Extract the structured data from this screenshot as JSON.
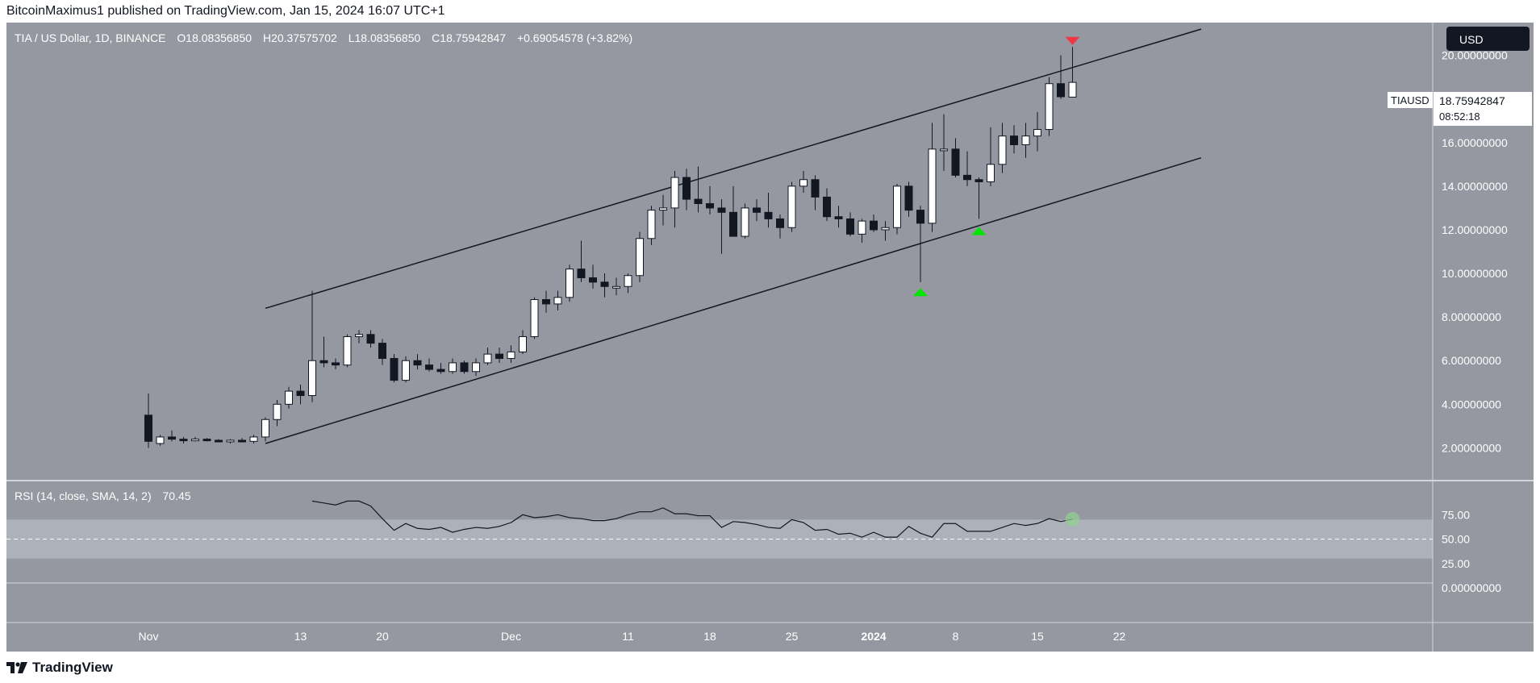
{
  "header": {
    "publisher_line": "BitcoinMaximus1 published on TradingView.com, Jan 15, 2024 16:07 UTC+1"
  },
  "footer": {
    "brand": "TradingView"
  },
  "legend": {
    "symbol": "TIA / US Dollar, 1D, BINANCE",
    "o_label": "O",
    "o_value": "18.08356850",
    "h_label": "H",
    "h_value": "20.37575702",
    "l_label": "L",
    "l_value": "18.08356850",
    "c_label": "C",
    "c_value": "18.75942847",
    "change": "+0.69054578 (+3.82%)"
  },
  "currency_badge": "USD",
  "price_tag": {
    "symbol": "TIAUSD",
    "price": "18.75942847",
    "countdown": "08:52:18"
  },
  "rsi_legend": {
    "label": "RSI (14, close, SMA, 14, 2)",
    "value": "70.45"
  },
  "colors": {
    "background": "#9598a1",
    "up_candle": "#ffffff",
    "down_candle": "#131722",
    "wick": "#131722",
    "channel": "#131722",
    "rsi_band": "#b2b5be",
    "marker_top": "#f23645",
    "marker_bottom": "#00e600"
  },
  "chart_data": [
    {
      "type": "candlestick",
      "yscale": "linear",
      "ylim": [
        0.5,
        21.5
      ],
      "y_ticks": [
        "20.00000000",
        "18.00000000",
        "16.00000000",
        "14.00000000",
        "12.00000000",
        "10.00000000",
        "8.00000000",
        "6.00000000",
        "4.00000000",
        "2.00000000"
      ],
      "x_ticks": [
        {
          "label": "Nov",
          "date": "2023-10-31"
        },
        {
          "label": "13",
          "date": "2023-11-13"
        },
        {
          "label": "20",
          "date": "2023-11-20"
        },
        {
          "label": "Dec",
          "date": "2023-12-01"
        },
        {
          "label": "11",
          "date": "2023-12-11"
        },
        {
          "label": "18",
          "date": "2023-12-18"
        },
        {
          "label": "25",
          "date": "2023-12-25"
        },
        {
          "label": "2024",
          "date": "2024-01-01"
        },
        {
          "label": "8",
          "date": "2024-01-08"
        },
        {
          "label": "15",
          "date": "2024-01-15"
        },
        {
          "label": "22",
          "date": "2024-01-22"
        }
      ],
      "candles": [
        {
          "date": "2023-10-31",
          "o": 3.5,
          "h": 4.5,
          "l": 2.0,
          "c": 2.3
        },
        {
          "date": "2023-11-01",
          "o": 2.2,
          "h": 2.6,
          "l": 2.1,
          "c": 2.5
        },
        {
          "date": "2023-11-02",
          "o": 2.5,
          "h": 2.8,
          "l": 2.3,
          "c": 2.4
        },
        {
          "date": "2023-11-03",
          "o": 2.4,
          "h": 2.5,
          "l": 2.2,
          "c": 2.35
        },
        {
          "date": "2023-11-04",
          "o": 2.35,
          "h": 2.5,
          "l": 2.3,
          "c": 2.4
        },
        {
          "date": "2023-11-05",
          "o": 2.4,
          "h": 2.45,
          "l": 2.3,
          "c": 2.35
        },
        {
          "date": "2023-11-06",
          "o": 2.35,
          "h": 2.4,
          "l": 2.25,
          "c": 2.3
        },
        {
          "date": "2023-11-07",
          "o": 2.3,
          "h": 2.4,
          "l": 2.2,
          "c": 2.35
        },
        {
          "date": "2023-11-08",
          "o": 2.35,
          "h": 2.45,
          "l": 2.25,
          "c": 2.3
        },
        {
          "date": "2023-11-09",
          "o": 2.3,
          "h": 2.6,
          "l": 2.2,
          "c": 2.5
        },
        {
          "date": "2023-11-10",
          "o": 2.5,
          "h": 3.4,
          "l": 2.3,
          "c": 3.3
        },
        {
          "date": "2023-11-11",
          "o": 3.3,
          "h": 4.2,
          "l": 3.0,
          "c": 4.0
        },
        {
          "date": "2023-11-12",
          "o": 4.0,
          "h": 4.8,
          "l": 3.8,
          "c": 4.6
        },
        {
          "date": "2023-11-13",
          "o": 4.6,
          "h": 4.9,
          "l": 4.0,
          "c": 4.4
        },
        {
          "date": "2023-11-14",
          "o": 4.4,
          "h": 9.2,
          "l": 4.1,
          "c": 6.0
        },
        {
          "date": "2023-11-15",
          "o": 6.0,
          "h": 7.1,
          "l": 5.7,
          "c": 5.9
        },
        {
          "date": "2023-11-16",
          "o": 5.9,
          "h": 6.1,
          "l": 5.6,
          "c": 5.8
        },
        {
          "date": "2023-11-17",
          "o": 5.8,
          "h": 7.2,
          "l": 5.7,
          "c": 7.1
        },
        {
          "date": "2023-11-18",
          "o": 7.1,
          "h": 7.4,
          "l": 6.8,
          "c": 7.2
        },
        {
          "date": "2023-11-19",
          "o": 7.2,
          "h": 7.4,
          "l": 6.6,
          "c": 6.8
        },
        {
          "date": "2023-11-20",
          "o": 6.8,
          "h": 7.0,
          "l": 5.8,
          "c": 6.1
        },
        {
          "date": "2023-11-21",
          "o": 6.1,
          "h": 6.3,
          "l": 5.0,
          "c": 5.1
        },
        {
          "date": "2023-11-22",
          "o": 5.1,
          "h": 6.2,
          "l": 5.0,
          "c": 6.0
        },
        {
          "date": "2023-11-23",
          "o": 6.0,
          "h": 6.3,
          "l": 5.6,
          "c": 5.8
        },
        {
          "date": "2023-11-24",
          "o": 5.8,
          "h": 6.1,
          "l": 5.5,
          "c": 5.6
        },
        {
          "date": "2023-11-25",
          "o": 5.6,
          "h": 5.9,
          "l": 5.4,
          "c": 5.5
        },
        {
          "date": "2023-11-26",
          "o": 5.5,
          "h": 6.1,
          "l": 5.4,
          "c": 5.9
        },
        {
          "date": "2023-11-27",
          "o": 5.9,
          "h": 6.0,
          "l": 5.4,
          "c": 5.5
        },
        {
          "date": "2023-11-28",
          "o": 5.5,
          "h": 6.1,
          "l": 5.3,
          "c": 5.9
        },
        {
          "date": "2023-11-29",
          "o": 5.9,
          "h": 6.6,
          "l": 5.8,
          "c": 6.3
        },
        {
          "date": "2023-11-30",
          "o": 6.3,
          "h": 6.6,
          "l": 5.9,
          "c": 6.1
        },
        {
          "date": "2023-12-01",
          "o": 6.1,
          "h": 6.7,
          "l": 5.9,
          "c": 6.4
        },
        {
          "date": "2023-12-02",
          "o": 6.4,
          "h": 7.4,
          "l": 6.3,
          "c": 7.1
        },
        {
          "date": "2023-12-03",
          "o": 7.1,
          "h": 8.9,
          "l": 7.0,
          "c": 8.8
        },
        {
          "date": "2023-12-04",
          "o": 8.8,
          "h": 9.2,
          "l": 8.2,
          "c": 8.6
        },
        {
          "date": "2023-12-05",
          "o": 8.6,
          "h": 9.2,
          "l": 8.3,
          "c": 8.9
        },
        {
          "date": "2023-12-06",
          "o": 8.9,
          "h": 10.4,
          "l": 8.7,
          "c": 10.2
        },
        {
          "date": "2023-12-07",
          "o": 10.2,
          "h": 11.5,
          "l": 9.6,
          "c": 9.8
        },
        {
          "date": "2023-12-08",
          "o": 9.8,
          "h": 10.4,
          "l": 9.3,
          "c": 9.6
        },
        {
          "date": "2023-12-09",
          "o": 9.6,
          "h": 10.0,
          "l": 8.9,
          "c": 9.4
        },
        {
          "date": "2023-12-10",
          "o": 9.4,
          "h": 9.8,
          "l": 9.0,
          "c": 9.4
        },
        {
          "date": "2023-12-11",
          "o": 9.4,
          "h": 10.0,
          "l": 9.1,
          "c": 9.9
        },
        {
          "date": "2023-12-12",
          "o": 9.9,
          "h": 11.9,
          "l": 9.6,
          "c": 11.6
        },
        {
          "date": "2023-12-13",
          "o": 11.6,
          "h": 13.1,
          "l": 11.3,
          "c": 12.9
        },
        {
          "date": "2023-12-14",
          "o": 12.9,
          "h": 13.6,
          "l": 12.2,
          "c": 13.0
        },
        {
          "date": "2023-12-15",
          "o": 13.0,
          "h": 14.7,
          "l": 12.1,
          "c": 14.4
        },
        {
          "date": "2023-12-16",
          "o": 14.4,
          "h": 14.8,
          "l": 12.9,
          "c": 13.4
        },
        {
          "date": "2023-12-17",
          "o": 13.4,
          "h": 14.9,
          "l": 12.8,
          "c": 13.2
        },
        {
          "date": "2023-12-18",
          "o": 13.2,
          "h": 14.0,
          "l": 12.7,
          "c": 13.0
        },
        {
          "date": "2023-12-19",
          "o": 13.0,
          "h": 13.4,
          "l": 10.9,
          "c": 12.8
        },
        {
          "date": "2023-12-20",
          "o": 12.8,
          "h": 14.0,
          "l": 11.7,
          "c": 11.7
        },
        {
          "date": "2023-12-21",
          "o": 11.7,
          "h": 13.2,
          "l": 11.6,
          "c": 13.0
        },
        {
          "date": "2023-12-22",
          "o": 13.0,
          "h": 13.4,
          "l": 12.4,
          "c": 12.8
        },
        {
          "date": "2023-12-23",
          "o": 12.8,
          "h": 13.7,
          "l": 12.1,
          "c": 12.5
        },
        {
          "date": "2023-12-24",
          "o": 12.5,
          "h": 12.7,
          "l": 11.6,
          "c": 12.1
        },
        {
          "date": "2023-12-25",
          "o": 12.1,
          "h": 14.2,
          "l": 11.9,
          "c": 14.0
        },
        {
          "date": "2023-12-26",
          "o": 14.0,
          "h": 14.7,
          "l": 13.7,
          "c": 14.3
        },
        {
          "date": "2023-12-27",
          "o": 14.3,
          "h": 14.5,
          "l": 12.9,
          "c": 13.5
        },
        {
          "date": "2023-12-28",
          "o": 13.5,
          "h": 13.9,
          "l": 12.4,
          "c": 12.6
        },
        {
          "date": "2023-12-29",
          "o": 12.6,
          "h": 13.1,
          "l": 12.1,
          "c": 12.5
        },
        {
          "date": "2023-12-30",
          "o": 12.5,
          "h": 12.8,
          "l": 11.7,
          "c": 11.8
        },
        {
          "date": "2023-12-31",
          "o": 11.8,
          "h": 12.5,
          "l": 11.4,
          "c": 12.4
        },
        {
          "date": "2024-01-01",
          "o": 12.4,
          "h": 12.7,
          "l": 11.9,
          "c": 12.0
        },
        {
          "date": "2024-01-02",
          "o": 12.0,
          "h": 12.4,
          "l": 11.5,
          "c": 12.1
        },
        {
          "date": "2024-01-03",
          "o": 12.1,
          "h": 14.1,
          "l": 11.8,
          "c": 14.0
        },
        {
          "date": "2024-01-04",
          "o": 14.0,
          "h": 14.2,
          "l": 12.6,
          "c": 12.9
        },
        {
          "date": "2024-01-05",
          "o": 12.9,
          "h": 13.1,
          "l": 9.6,
          "c": 12.3
        },
        {
          "date": "2024-01-06",
          "o": 12.3,
          "h": 16.9,
          "l": 11.9,
          "c": 15.7
        },
        {
          "date": "2024-01-07",
          "o": 15.7,
          "h": 17.3,
          "l": 14.7,
          "c": 15.7
        },
        {
          "date": "2024-01-08",
          "o": 15.7,
          "h": 16.2,
          "l": 14.4,
          "c": 14.5
        },
        {
          "date": "2024-01-09",
          "o": 14.5,
          "h": 15.6,
          "l": 14.0,
          "c": 14.3
        },
        {
          "date": "2024-01-10",
          "o": 14.3,
          "h": 14.4,
          "l": 12.5,
          "c": 14.2
        },
        {
          "date": "2024-01-11",
          "o": 14.2,
          "h": 16.7,
          "l": 14.0,
          "c": 15.0
        },
        {
          "date": "2024-01-12",
          "o": 15.0,
          "h": 16.9,
          "l": 14.6,
          "c": 16.3
        },
        {
          "date": "2024-01-13",
          "o": 16.3,
          "h": 16.8,
          "l": 15.5,
          "c": 15.9
        },
        {
          "date": "2024-01-14",
          "o": 15.9,
          "h": 16.9,
          "l": 15.3,
          "c": 16.3
        },
        {
          "date": "2024-01-15",
          "o": 16.3,
          "h": 17.4,
          "l": 15.6,
          "c": 16.6
        },
        {
          "date": "2024-01-16",
          "o": 16.6,
          "h": 19.0,
          "l": 16.3,
          "c": 18.7
        },
        {
          "date": "2024-01-17",
          "o": 18.7,
          "h": 20.0,
          "l": 18.0,
          "c": 18.1
        },
        {
          "date": "2024-01-18",
          "o": 18.0835685,
          "h": 20.37575702,
          "l": 18.0835685,
          "c": 18.75942847
        }
      ],
      "channel_lines": [
        {
          "name": "upper",
          "from": {
            "date": "2023-11-10",
            "y": 8.4
          },
          "to": {
            "date": "2024-01-29",
            "y": 21.2
          }
        },
        {
          "name": "lower",
          "from": {
            "date": "2023-11-10",
            "y": 2.2
          },
          "to": {
            "date": "2024-01-29",
            "y": 15.3
          }
        }
      ],
      "markers": [
        {
          "type": "down",
          "date": "2024-01-18",
          "y": 20.4
        },
        {
          "type": "up",
          "date": "2024-01-05",
          "y": 9.4
        },
        {
          "type": "up",
          "date": "2024-01-10",
          "y": 12.2
        }
      ],
      "last_price": 18.75942847
    },
    {
      "type": "line",
      "indicator": "RSI",
      "ylim": [
        5,
        110
      ],
      "y_ticks": [
        "75.00",
        "50.00",
        "25.00",
        "0.00000000"
      ],
      "band": [
        30,
        70
      ],
      "midline": 50,
      "dates_from": "2023-11-14",
      "values": [
        89,
        87,
        85,
        89,
        89,
        84,
        71,
        59,
        66,
        61,
        60,
        62,
        57,
        60,
        62,
        61,
        63,
        67,
        75,
        72,
        73,
        75,
        72,
        71,
        69,
        69,
        71,
        75,
        78,
        78,
        82,
        76,
        76,
        74,
        74,
        62,
        68,
        67,
        65,
        62,
        61,
        70,
        67,
        59,
        60,
        55,
        56,
        52,
        57,
        52,
        52,
        63,
        56,
        52,
        66,
        66,
        58,
        58,
        58,
        62,
        66,
        64,
        66,
        71,
        68,
        70.45
      ]
    }
  ]
}
